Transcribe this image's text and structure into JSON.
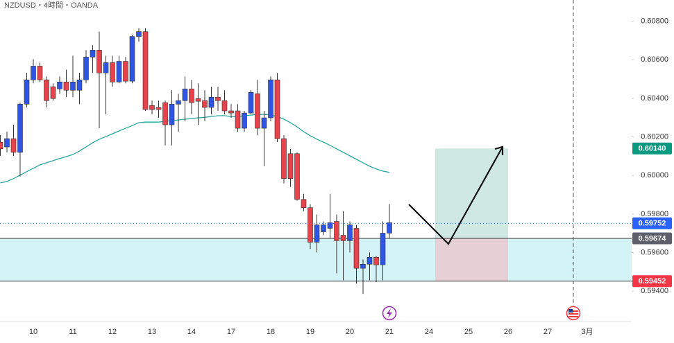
{
  "chart_data": {
    "type": "candlestick",
    "title": "NZDUSD・4時間・OANDA",
    "categories": [
      null,
      null,
      null,
      null,
      null,
      "10",
      null,
      null,
      null,
      null,
      null,
      "11",
      null,
      null,
      null,
      null,
      null,
      "12",
      null,
      null,
      null,
      null,
      null,
      "13",
      null,
      null,
      null,
      null,
      null,
      "14",
      null,
      null,
      null,
      null,
      null,
      "17",
      null,
      null,
      null,
      null,
      null,
      "18",
      null,
      null,
      null,
      null,
      null,
      "19",
      null,
      null,
      null,
      null,
      null,
      "20",
      null,
      null,
      null,
      null,
      null,
      "21",
      null,
      null,
      null,
      null,
      null,
      "24",
      null,
      null,
      null,
      null,
      null,
      "25",
      null,
      null,
      null,
      null,
      null,
      "26",
      null,
      null,
      null,
      null,
      null,
      "27",
      null,
      null,
      null,
      null,
      null,
      "3月"
    ],
    "open": [
      0.60173,
      0.60148,
      0.60191,
      0.6012,
      0.6037,
      0.60496,
      0.60567,
      0.60496,
      0.6046,
      0.60449,
      0.60485,
      0.60442,
      0.60442,
      0.60496,
      0.60614,
      0.6065,
      0.60532,
      0.60585,
      0.60485,
      0.60592,
      0.60489,
      0.60721,
      0.60746,
      0.60363,
      0.60353,
      0.60378,
      0.60263,
      0.6037,
      0.60388,
      0.60449,
      0.60399,
      0.60388,
      0.60353,
      0.60406,
      0.60388,
      0.60335,
      0.60335,
      0.60245,
      0.60324,
      0.60424,
      0.60245,
      0.60299,
      0.60496,
      0.60191,
      0.60113,
      0.60113,
      0.59876,
      0.59833,
      0.59654,
      0.59708,
      0.59726,
      0.59762,
      0.5969,
      0.59662,
      0.59726,
      0.59519,
      0.5954,
      0.59576,
      0.59537,
      0.59701,
      null,
      null,
      null,
      null,
      null,
      null,
      null,
      null,
      null,
      null,
      null,
      null,
      null,
      null,
      null,
      null,
      null,
      null,
      null,
      null,
      null,
      null,
      null,
      null,
      null,
      null,
      null,
      null,
      null,
      null
    ],
    "high": [
      0.60209,
      0.60227,
      0.60263,
      0.60378,
      0.60532,
      0.60603,
      0.60585,
      0.60514,
      0.60478,
      0.60514,
      0.60549,
      0.60621,
      0.60532,
      0.6065,
      0.60675,
      0.60746,
      0.60621,
      0.60621,
      0.60621,
      0.60614,
      0.60728,
      0.60764,
      0.60764,
      0.60388,
      0.60388,
      0.60388,
      0.60442,
      0.60424,
      0.60514,
      0.60496,
      0.60478,
      0.60442,
      0.6046,
      0.6046,
      0.60442,
      0.6037,
      0.6037,
      0.60335,
      0.60442,
      0.60496,
      0.60335,
      0.60514,
      0.60532,
      0.60209,
      0.60138,
      0.6012,
      0.59905,
      0.59851,
      0.59798,
      0.59762,
      0.59905,
      0.59798,
      0.59816,
      0.59762,
      0.59744,
      0.59565,
      0.59601,
      0.59583,
      0.59762,
      0.59851,
      null,
      null,
      null,
      null,
      null,
      null,
      null,
      null,
      null,
      null,
      null,
      null,
      null,
      null,
      null,
      null,
      null,
      null,
      null,
      null,
      null,
      null,
      null,
      null,
      null,
      null,
      null,
      null,
      null,
      null
    ],
    "low": [
      0.60102,
      0.6012,
      0.60102,
      0.59995,
      0.60353,
      0.60478,
      0.60485,
      0.60353,
      0.60388,
      0.60424,
      0.60406,
      0.60406,
      0.6037,
      0.60478,
      0.60532,
      0.60245,
      0.60317,
      0.6046,
      0.60478,
      0.60478,
      0.60478,
      0.60693,
      0.60335,
      0.60317,
      0.60299,
      0.60156,
      0.60156,
      0.60227,
      0.60281,
      0.60317,
      0.60263,
      0.60281,
      0.60317,
      0.60335,
      0.60317,
      0.60299,
      0.60227,
      0.60227,
      0.60317,
      0.60209,
      0.60048,
      0.60281,
      0.60173,
      0.59959,
      0.59941,
      0.59869,
      0.59816,
      0.59619,
      0.59601,
      0.5969,
      0.59672,
      0.59493,
      0.59457,
      0.59601,
      0.59439,
      0.59386,
      0.59457,
      0.59447,
      0.59457,
      0.59672,
      null,
      null,
      null,
      null,
      null,
      null,
      null,
      null,
      null,
      null,
      null,
      null,
      null,
      null,
      null,
      null,
      null,
      null,
      null,
      null,
      null,
      null,
      null,
      null,
      null,
      null,
      null,
      null,
      null,
      null
    ],
    "close": [
      0.60138,
      0.60191,
      0.6012,
      0.6037,
      0.60496,
      0.60567,
      0.60496,
      0.60388,
      0.60399,
      0.60485,
      0.60442,
      0.60485,
      0.60496,
      0.60614,
      0.6065,
      0.60532,
      0.60585,
      0.60485,
      0.60592,
      0.60489,
      0.60721,
      0.60746,
      0.60342,
      0.60342,
      0.60342,
      0.60263,
      0.6037,
      0.60388,
      0.60449,
      0.60378,
      0.60385,
      0.60353,
      0.60406,
      0.60388,
      0.60335,
      0.60324,
      0.60245,
      0.60324,
      0.60431,
      0.60245,
      0.60299,
      0.60496,
      0.60191,
      0.59984,
      0.59984,
      0.59876,
      0.59833,
      0.59654,
      0.59744,
      0.59744,
      0.59755,
      0.59662,
      0.59662,
      0.59744,
      0.59519,
      0.5954,
      0.59576,
      0.59537,
      0.59701,
      0.59755,
      null,
      null,
      null,
      null,
      null,
      null,
      null,
      null,
      null,
      null,
      null,
      null,
      null,
      null,
      null,
      null,
      null,
      null,
      null,
      null,
      null,
      null,
      null,
      null,
      null,
      null,
      null,
      null,
      null,
      null
    ],
    "up_color": "#2f55e4",
    "down_color": "#e8434d",
    "moving_average": {
      "color": "#26a69a",
      "values": [
        0.59962,
        0.59969,
        0.59984,
        0.60002,
        0.6002,
        0.60037,
        0.60055,
        0.60066,
        0.60077,
        0.60088,
        0.60098,
        0.60109,
        0.60127,
        0.60148,
        0.6017,
        0.60188,
        0.60202,
        0.60216,
        0.60231,
        0.60245,
        0.60259,
        0.60274,
        0.60277,
        0.60277,
        0.60277,
        0.60281,
        0.60284,
        0.60288,
        0.60292,
        0.60295,
        0.60299,
        0.60302,
        0.60306,
        0.6031,
        0.6031,
        0.60306,
        0.60306,
        0.6031,
        0.60313,
        0.60317,
        0.60317,
        0.60313,
        0.60306,
        0.60292,
        0.60274,
        0.60252,
        0.60227,
        0.60206,
        0.60188,
        0.60173,
        0.60156,
        0.60138,
        0.6012,
        0.60102,
        0.60084,
        0.60066,
        0.60048,
        0.60034,
        0.60023,
        0.60016,
        null,
        null,
        null,
        null,
        null,
        null,
        null,
        null,
        null,
        null,
        null,
        null,
        null,
        null,
        null,
        null,
        null,
        null,
        null,
        null,
        null,
        null,
        null,
        null,
        null,
        null,
        null,
        null,
        null,
        null
      ]
    },
    "ylim": [
      0.5925,
      0.6091
    ],
    "yticks": [
      {
        "value": 0.594,
        "label": "0.59400"
      },
      {
        "value": 0.596,
        "label": "0.59600"
      },
      {
        "value": 0.598,
        "label": "0.59800"
      },
      {
        "value": 0.6,
        "label": "0.60000"
      },
      {
        "value": 0.602,
        "label": "0.60200"
      },
      {
        "value": 0.604,
        "label": "0.60400"
      },
      {
        "value": 0.606,
        "label": "0.60600"
      },
      {
        "value": 0.608,
        "label": "0.60800"
      }
    ],
    "price_levels": [
      {
        "value": 0.6014,
        "label": "0.60140",
        "color": "#089981"
      },
      {
        "value": 0.59752,
        "label": "0.59752",
        "color": "#2962ff"
      },
      {
        "value": 0.59674,
        "label": "0.59674",
        "color": "#5d606b"
      },
      {
        "value": 0.59452,
        "label": "0.59452",
        "color": "#f23645"
      }
    ]
  }
}
